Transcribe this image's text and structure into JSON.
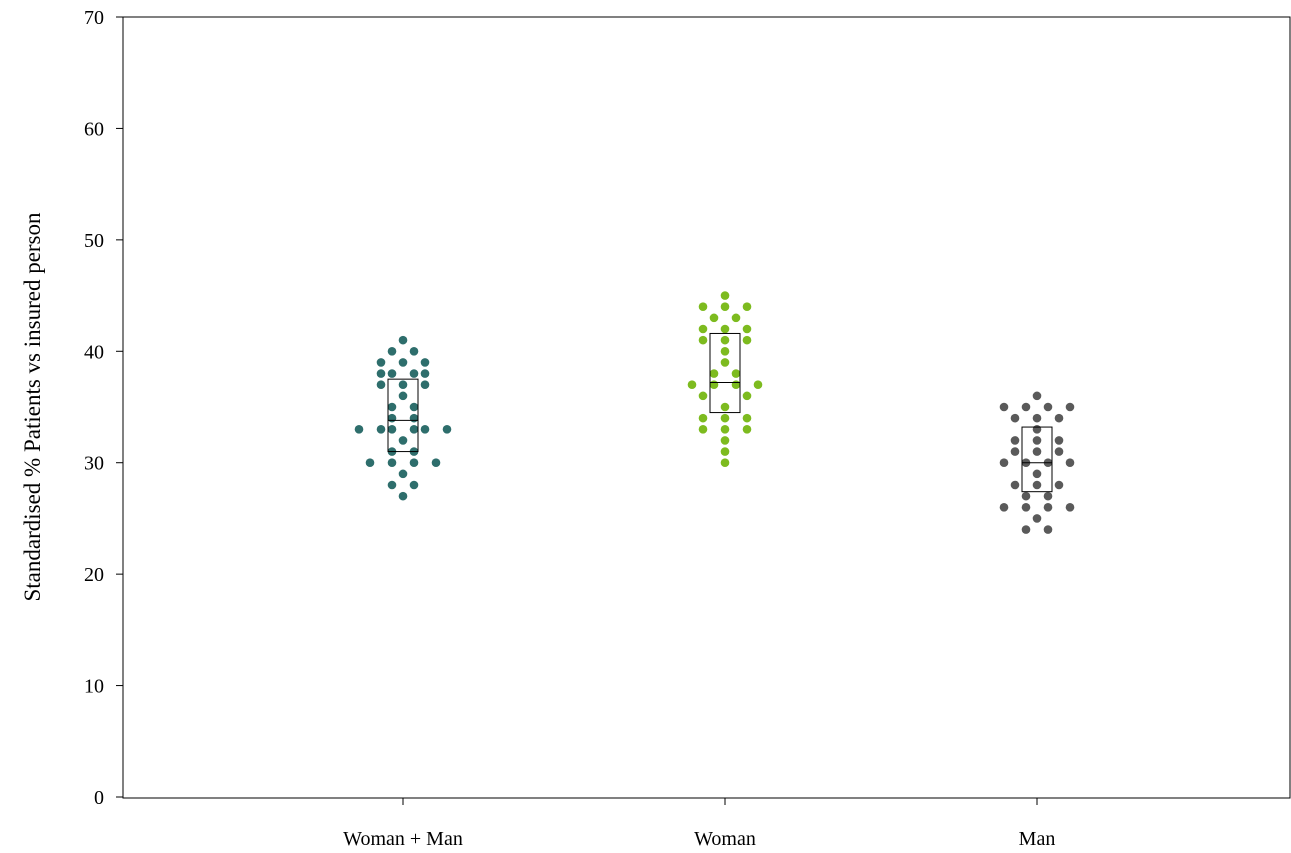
{
  "chart_data": {
    "type": "scatter",
    "subtype": "dot-strip-with-box",
    "title": "",
    "xlabel": "",
    "ylabel": "Standardised % Patients vs insured person",
    "ylim": [
      0,
      70
    ],
    "yticks": [
      0,
      10,
      20,
      30,
      40,
      50,
      60,
      70
    ],
    "grid": false,
    "legend": "none",
    "categories": [
      "Woman + Man",
      "Woman",
      "Man"
    ],
    "series": [
      {
        "category": "Woman + Man",
        "color": "#2e6e6c",
        "box": {
          "q1": 31,
          "median": 33.8,
          "q3": 37.5
        },
        "points": [
          {
            "dx": 0,
            "y": 41
          },
          {
            "dx": -1,
            "y": 40
          },
          {
            "dx": 1,
            "y": 40
          },
          {
            "dx": -2,
            "y": 39
          },
          {
            "dx": 0,
            "y": 39
          },
          {
            "dx": 2,
            "y": 39
          },
          {
            "dx": -2,
            "y": 38
          },
          {
            "dx": -1,
            "y": 38
          },
          {
            "dx": 1,
            "y": 38
          },
          {
            "dx": 2,
            "y": 38
          },
          {
            "dx": -2,
            "y": 37
          },
          {
            "dx": 0,
            "y": 37
          },
          {
            "dx": 2,
            "y": 37
          },
          {
            "dx": 0,
            "y": 36
          },
          {
            "dx": -1,
            "y": 35
          },
          {
            "dx": 1,
            "y": 35
          },
          {
            "dx": -1,
            "y": 34
          },
          {
            "dx": 1,
            "y": 34
          },
          {
            "dx": -4,
            "y": 33
          },
          {
            "dx": -2,
            "y": 33
          },
          {
            "dx": -1,
            "y": 33
          },
          {
            "dx": 1,
            "y": 33
          },
          {
            "dx": 2,
            "y": 33
          },
          {
            "dx": 4,
            "y": 33
          },
          {
            "dx": 0,
            "y": 32
          },
          {
            "dx": -1,
            "y": 31
          },
          {
            "dx": 1,
            "y": 31
          },
          {
            "dx": -3,
            "y": 30
          },
          {
            "dx": -1,
            "y": 30
          },
          {
            "dx": 1,
            "y": 30
          },
          {
            "dx": 3,
            "y": 30
          },
          {
            "dx": 0,
            "y": 29
          },
          {
            "dx": -1,
            "y": 28
          },
          {
            "dx": 1,
            "y": 28
          },
          {
            "dx": 0,
            "y": 27
          }
        ]
      },
      {
        "category": "Woman",
        "color": "#7dbb1f",
        "box": {
          "q1": 34.5,
          "median": 37.2,
          "q3": 41.6
        },
        "points": [
          {
            "dx": 0,
            "y": 45
          },
          {
            "dx": -2,
            "y": 44
          },
          {
            "dx": 0,
            "y": 44
          },
          {
            "dx": 2,
            "y": 44
          },
          {
            "dx": -1,
            "y": 43
          },
          {
            "dx": 1,
            "y": 43
          },
          {
            "dx": -2,
            "y": 42
          },
          {
            "dx": 0,
            "y": 42
          },
          {
            "dx": 2,
            "y": 42
          },
          {
            "dx": -2,
            "y": 41
          },
          {
            "dx": 0,
            "y": 41
          },
          {
            "dx": 2,
            "y": 41
          },
          {
            "dx": 0,
            "y": 40
          },
          {
            "dx": 0,
            "y": 39
          },
          {
            "dx": -1,
            "y": 38
          },
          {
            "dx": 1,
            "y": 38
          },
          {
            "dx": -3,
            "y": 37
          },
          {
            "dx": -1,
            "y": 37
          },
          {
            "dx": 1,
            "y": 37
          },
          {
            "dx": 3,
            "y": 37
          },
          {
            "dx": -2,
            "y": 36
          },
          {
            "dx": 2,
            "y": 36
          },
          {
            "dx": 0,
            "y": 35
          },
          {
            "dx": -2,
            "y": 34
          },
          {
            "dx": 0,
            "y": 34
          },
          {
            "dx": 2,
            "y": 34
          },
          {
            "dx": -2,
            "y": 33
          },
          {
            "dx": 0,
            "y": 33
          },
          {
            "dx": 2,
            "y": 33
          },
          {
            "dx": 0,
            "y": 32
          },
          {
            "dx": 0,
            "y": 31
          },
          {
            "dx": 0,
            "y": 30
          }
        ]
      },
      {
        "category": "Man",
        "color": "#5a5a5a",
        "box": {
          "q1": 27.4,
          "median": 30,
          "q3": 33.2
        },
        "points": [
          {
            "dx": 0,
            "y": 36
          },
          {
            "dx": -3,
            "y": 35
          },
          {
            "dx": -1,
            "y": 35
          },
          {
            "dx": 1,
            "y": 35
          },
          {
            "dx": 3,
            "y": 35
          },
          {
            "dx": -2,
            "y": 34
          },
          {
            "dx": 0,
            "y": 34
          },
          {
            "dx": 2,
            "y": 34
          },
          {
            "dx": 0,
            "y": 33
          },
          {
            "dx": -2,
            "y": 32
          },
          {
            "dx": 0,
            "y": 32
          },
          {
            "dx": 2,
            "y": 32
          },
          {
            "dx": -2,
            "y": 31
          },
          {
            "dx": 0,
            "y": 31
          },
          {
            "dx": 2,
            "y": 31
          },
          {
            "dx": -3,
            "y": 30
          },
          {
            "dx": -1,
            "y": 30
          },
          {
            "dx": 1,
            "y": 30
          },
          {
            "dx": 3,
            "y": 30
          },
          {
            "dx": 0,
            "y": 29
          },
          {
            "dx": -2,
            "y": 28
          },
          {
            "dx": 0,
            "y": 28
          },
          {
            "dx": 2,
            "y": 28
          },
          {
            "dx": -1,
            "y": 27
          },
          {
            "dx": 1,
            "y": 27
          },
          {
            "dx": -3,
            "y": 26
          },
          {
            "dx": -1,
            "y": 26
          },
          {
            "dx": 1,
            "y": 26
          },
          {
            "dx": 3,
            "y": 26
          },
          {
            "dx": 0,
            "y": 25
          },
          {
            "dx": -1,
            "y": 24
          },
          {
            "dx": 1,
            "y": 24
          }
        ]
      }
    ]
  }
}
